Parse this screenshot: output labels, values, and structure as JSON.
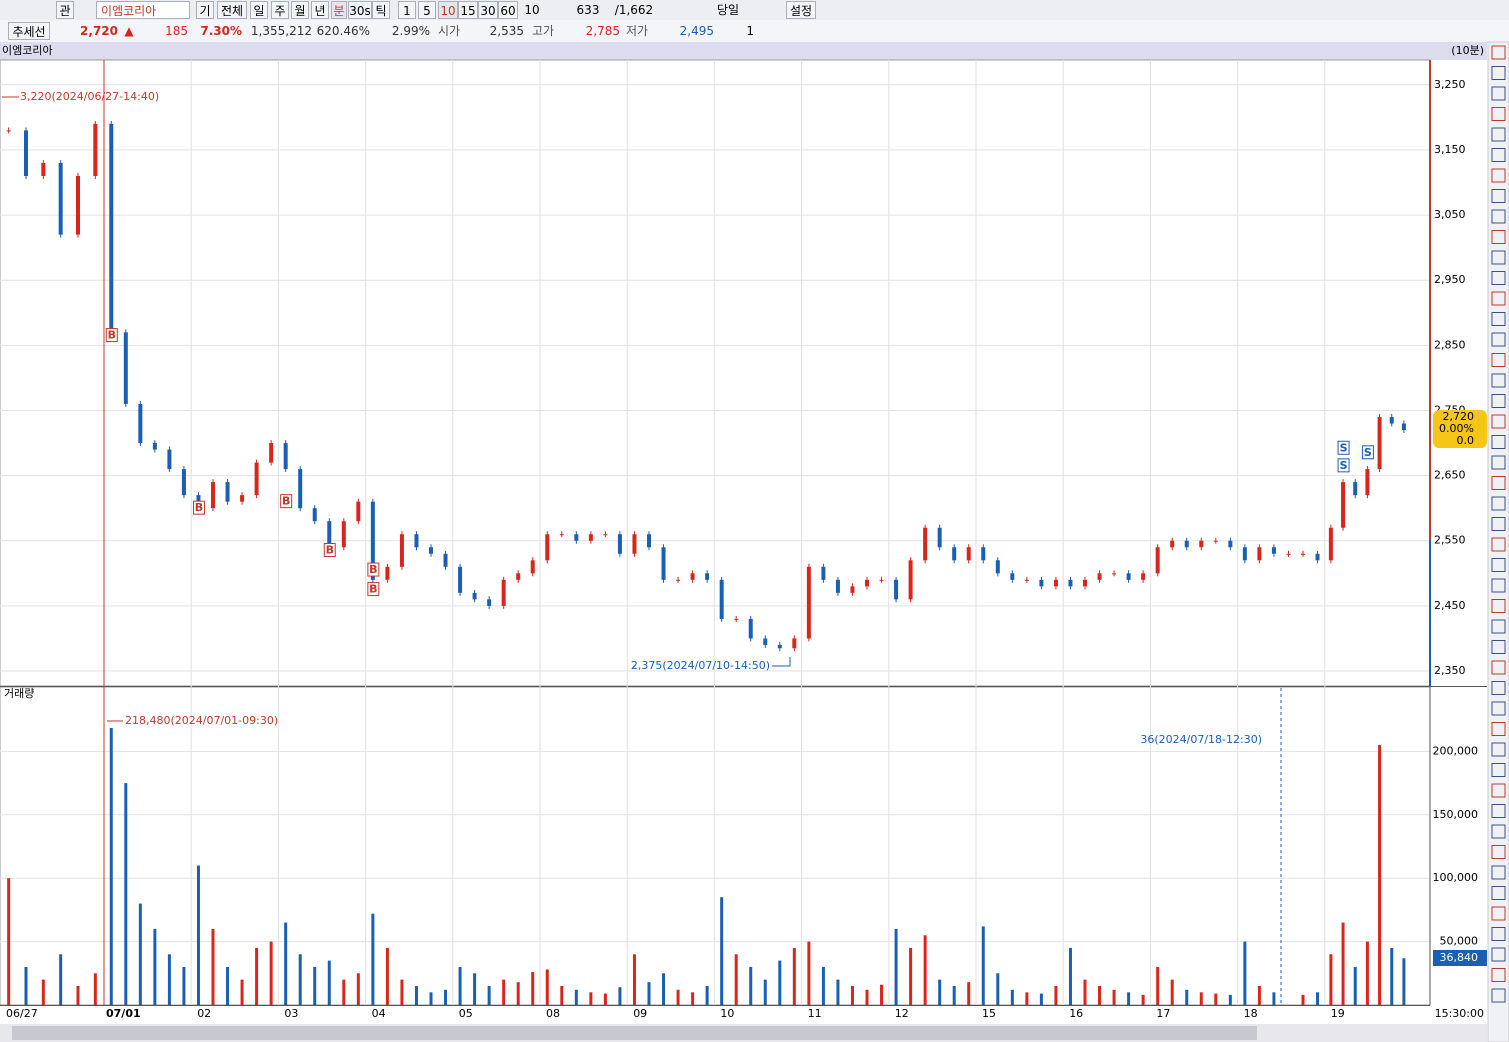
{
  "toolbar": {
    "row1": [
      "관",
      "이엠코리아",
      "기",
      "전체",
      "일",
      "주",
      "월",
      "년",
      "분",
      "30s",
      "틱",
      "1",
      "5",
      "10",
      "15",
      "30",
      "60",
      "10",
      "633",
      "/1,662",
      "당일",
      "설정"
    ],
    "row2": [
      "추세선",
      "2,720",
      "▲",
      "185",
      "7.30%",
      "1,355,212",
      "620.46%",
      "2.99%",
      "시가",
      "2,535",
      "고가",
      "2,785",
      "저가",
      "2,495",
      "1"
    ]
  },
  "chart_data": {
    "type": "candlestick",
    "title": "이엠코리아",
    "interval": "(10분)",
    "days": [
      {
        "label": "06/27",
        "closes": [
          3180,
          3110,
          3130,
          3020,
          3110,
          3190
        ],
        "volumes": [
          100000,
          30000,
          20000,
          40000,
          15000,
          25000
        ]
      },
      {
        "label": "07/01",
        "closes": [
          2870,
          2760,
          2700,
          2690,
          2660,
          2620
        ],
        "volumes": [
          218480,
          175000,
          80000,
          60000,
          40000,
          30000
        ]
      },
      {
        "label": "02",
        "closes": [
          2600,
          2640,
          2610,
          2620,
          2670,
          2700
        ],
        "volumes": [
          110000,
          60000,
          30000,
          20000,
          45000,
          50000
        ]
      },
      {
        "label": "03",
        "closes": [
          2660,
          2600,
          2580,
          2540,
          2580,
          2610
        ],
        "volumes": [
          65000,
          40000,
          30000,
          35000,
          20000,
          25000
        ]
      },
      {
        "label": "04",
        "closes": [
          2490,
          2510,
          2560,
          2540,
          2530,
          2510
        ],
        "volumes": [
          72000,
          45000,
          20000,
          15000,
          10000,
          12000
        ]
      },
      {
        "label": "05",
        "closes": [
          2470,
          2460,
          2450,
          2490,
          2500,
          2520
        ],
        "volumes": [
          30000,
          25000,
          15000,
          20000,
          18000,
          26000
        ]
      },
      {
        "label": "08",
        "closes": [
          2560,
          2560,
          2550,
          2560,
          2560,
          2530
        ],
        "volumes": [
          28000,
          15000,
          12000,
          10000,
          9000,
          14000
        ]
      },
      {
        "label": "09",
        "closes": [
          2560,
          2540,
          2490,
          2490,
          2500,
          2490
        ],
        "volumes": [
          40000,
          18000,
          25000,
          12000,
          10000,
          15000
        ]
      },
      {
        "label": "10",
        "closes": [
          2430,
          2430,
          2400,
          2390,
          2385,
          2400
        ],
        "volumes": [
          85000,
          40000,
          30000,
          20000,
          35000,
          45000
        ]
      },
      {
        "label": "11",
        "closes": [
          2510,
          2490,
          2470,
          2480,
          2490,
          2490
        ],
        "volumes": [
          50000,
          30000,
          20000,
          15000,
          12000,
          16000
        ]
      },
      {
        "label": "12",
        "closes": [
          2460,
          2520,
          2570,
          2540,
          2520,
          2540
        ],
        "volumes": [
          60000,
          45000,
          55000,
          20000,
          15000,
          18000
        ]
      },
      {
        "label": "15",
        "closes": [
          2520,
          2500,
          2490,
          2490,
          2480,
          2490
        ],
        "volumes": [
          62000,
          25000,
          12000,
          10000,
          9000,
          15000
        ]
      },
      {
        "label": "16",
        "closes": [
          2480,
          2490,
          2500,
          2500,
          2490,
          2500
        ],
        "volumes": [
          45000,
          20000,
          15000,
          12000,
          10000,
          8000
        ]
      },
      {
        "label": "17",
        "closes": [
          2540,
          2550,
          2540,
          2550,
          2550,
          2540
        ],
        "volumes": [
          30000,
          20000,
          12000,
          10000,
          9000,
          8000
        ]
      },
      {
        "label": "18",
        "closes": [
          2520,
          2540,
          2530,
          2530,
          2530,
          2520
        ],
        "volumes": [
          50000,
          15000,
          10000,
          36,
          8000,
          10000
        ]
      },
      {
        "label": "19",
        "closes": [
          2570,
          2640,
          2620,
          2660,
          2740,
          2730,
          2720
        ],
        "volumes": [
          40000,
          65000,
          30000,
          50000,
          205000,
          45000,
          36840
        ]
      }
    ],
    "ylim": [
      2327,
      3285
    ],
    "yticks": [
      {
        "value": 2350,
        "label": "2,350"
      },
      {
        "value": 2450,
        "label": "2,450"
      },
      {
        "value": 2550,
        "label": "2,550"
      },
      {
        "value": 2650,
        "label": "2,650"
      },
      {
        "value": 2750,
        "label": "2,750"
      },
      {
        "value": 2850,
        "label": "2,850"
      },
      {
        "value": 2950,
        "label": "2,950"
      },
      {
        "value": 3050,
        "label": "3,050"
      },
      {
        "value": 3150,
        "label": "3,150"
      },
      {
        "value": 3250,
        "label": "3,250"
      }
    ],
    "signals": [
      {
        "label": "B",
        "day": 1,
        "slot": 0,
        "price": 2865
      },
      {
        "label": "B",
        "day": 2,
        "slot": 0,
        "price": 2600
      },
      {
        "label": "B",
        "day": 3,
        "slot": 0,
        "price": 2610
      },
      {
        "label": "B",
        "day": 3,
        "slot": 3,
        "price": 2535
      },
      {
        "label": "B",
        "day": 4,
        "slot": 0,
        "price": 2505
      },
      {
        "label": "B",
        "day": 4,
        "slot": 0,
        "price": 2475
      },
      {
        "label": "S",
        "day": 15,
        "slot": 1,
        "price": 2692
      },
      {
        "label": "S",
        "day": 15,
        "slot": 1,
        "price": 2665
      },
      {
        "label": "S",
        "day": 15,
        "slot": 3,
        "price": 2685
      }
    ],
    "annotations": {
      "high": "3,220(2024/06/27-14:40)",
      "low": "2,375(2024/07/10-14:50)",
      "vol_high": "218,480(2024/07/01-09:30)",
      "vol_low": "36(2024/07/18-12:30)"
    },
    "current": {
      "price": "2,720",
      "change": "0.00%",
      "diff": "0.0",
      "volume": "36,840",
      "time": "15:30:00"
    },
    "volume_panel": {
      "title": "거래량",
      "ylim": [
        0,
        250000
      ],
      "yticks": [
        {
          "value": 50000,
          "label": "50,000"
        },
        {
          "value": 100000,
          "label": "100,000"
        },
        {
          "value": 150000,
          "label": "150,000"
        },
        {
          "value": 200000,
          "label": "200,000"
        }
      ]
    }
  }
}
